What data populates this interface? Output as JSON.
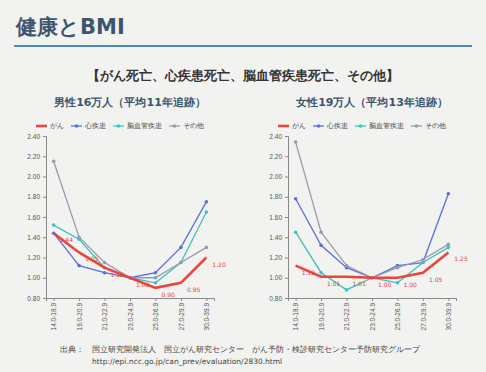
{
  "header": {
    "title": "健康とBMI",
    "subtitle": "【がん死亡、心疾患死亡、脳血管疾患死亡、その他】"
  },
  "footer": {
    "source": "出典：　国立研究開発法人　国立がん研究センター　がん予防・検診研究センター予防研究グループ",
    "url": "http://epi.ncc.go.jp/can_prev/evaluation/2830.html"
  },
  "chart_data": [
    {
      "type": "line",
      "title": "男性16万人（平均11年追跡）",
      "categories": [
        "14.0-18.9",
        "19.0-20.9",
        "21.0-22.9",
        "23.0-24.9",
        "25.0-26.9",
        "27.0-29.9",
        "30.0-39.9"
      ],
      "series": [
        {
          "name": "がん",
          "color": "#e8453c",
          "marker": "none",
          "line_style": "solid",
          "data_labels": true,
          "values": [
            1.44,
            1.25,
            1.1,
            1.0,
            0.9,
            0.95,
            1.2
          ],
          "value_labels": [
            "1.44",
            "1.25",
            "1.10",
            "1.00",
            "0.90",
            "0.95",
            "1.20"
          ]
        },
        {
          "name": "心疾患",
          "color": "#5a6fe0",
          "marker": "circle",
          "line_style": "solid",
          "values": [
            1.44,
            1.12,
            1.05,
            1.0,
            1.05,
            1.3,
            1.75
          ]
        },
        {
          "name": "脳血管疾患",
          "color": "#3cc4bd",
          "marker": "circle",
          "line_style": "solid",
          "values": [
            1.52,
            1.38,
            1.1,
            1.0,
            0.95,
            1.15,
            1.65
          ]
        },
        {
          "name": "その他",
          "color": "#9a9aae",
          "marker": "circle",
          "line_style": "solid",
          "values": [
            2.15,
            1.4,
            1.15,
            1.0,
            1.0,
            1.15,
            1.3
          ]
        }
      ],
      "ylim": [
        0.8,
        2.4
      ],
      "yticks": [
        {
          "value": 0.8,
          "label": "0.80"
        },
        {
          "value": 1.0,
          "label": "1.00"
        },
        {
          "value": 1.2,
          "label": "1.20"
        },
        {
          "value": 1.4,
          "label": "1.40"
        },
        {
          "value": 1.6,
          "label": "1.60"
        },
        {
          "value": 1.8,
          "label": "1.80"
        },
        {
          "value": 2.0,
          "label": "2.00"
        },
        {
          "value": 2.2,
          "label": "2.20"
        },
        {
          "value": 2.4,
          "label": "2.40"
        }
      ],
      "legend": "top",
      "grid": false
    },
    {
      "type": "line",
      "title": "女性19万人（平均13年追跡）",
      "categories": [
        "14.0-18.9",
        "19.0-20.9",
        "21.0-22.9",
        "23.0-24.9",
        "25.0-26.9",
        "27.0-29.9",
        "30.0-39.9"
      ],
      "series": [
        {
          "name": "がん",
          "color": "#e8453c",
          "marker": "none",
          "line_style": "solid",
          "data_labels": true,
          "values": [
            1.12,
            1.01,
            1.01,
            1.0,
            1.0,
            1.05,
            1.25
          ],
          "value_labels": [
            "1.12",
            "1.01",
            "1.01",
            "1.00",
            "1.00",
            "1.05",
            "1.25"
          ]
        },
        {
          "name": "心疾患",
          "color": "#5a6fe0",
          "marker": "circle",
          "line_style": "solid",
          "values": [
            1.78,
            1.32,
            1.1,
            1.0,
            1.12,
            1.15,
            1.83
          ]
        },
        {
          "name": "脳血管疾患",
          "color": "#3cc4bd",
          "marker": "circle",
          "line_style": "solid",
          "values": [
            1.45,
            1.05,
            0.88,
            1.0,
            0.95,
            1.15,
            1.3
          ]
        },
        {
          "name": "その他",
          "color": "#9a9aae",
          "marker": "circle",
          "line_style": "solid",
          "values": [
            2.34,
            1.45,
            1.12,
            1.0,
            1.1,
            1.18,
            1.33
          ]
        }
      ],
      "ylim": [
        0.8,
        2.4
      ],
      "yticks": [
        {
          "value": 0.8,
          "label": "0.80"
        },
        {
          "value": 1.0,
          "label": "1.00"
        },
        {
          "value": 1.2,
          "label": "1.20"
        },
        {
          "value": 1.4,
          "label": "1.40"
        },
        {
          "value": 1.6,
          "label": "1.60"
        },
        {
          "value": 1.8,
          "label": "1.80"
        },
        {
          "value": 2.0,
          "label": "2.00"
        },
        {
          "value": 2.2,
          "label": "2.20"
        },
        {
          "value": 2.4,
          "label": "2.40"
        }
      ],
      "legend": "top",
      "grid": false
    }
  ]
}
